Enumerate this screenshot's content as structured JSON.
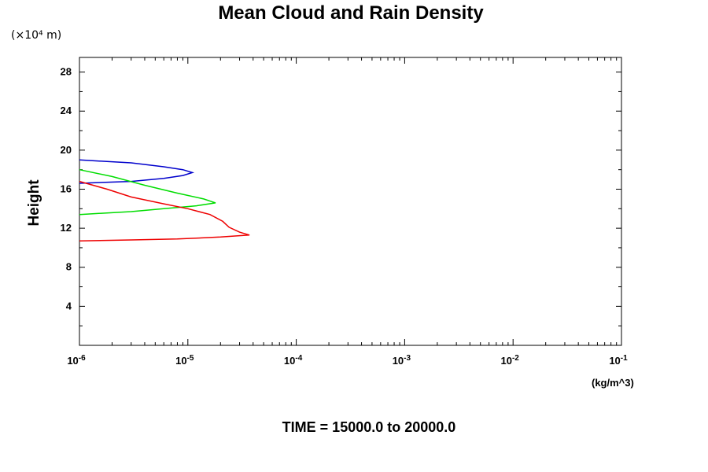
{
  "chart_data": {
    "type": "line",
    "title": "Mean Cloud and Rain Density",
    "y_units": "(×10⁴ m)",
    "ylabel": "Height",
    "xlabel": "(kg/m^3)",
    "footer": "TIME = 15000.0 to 20000.0",
    "x_scale": "log",
    "xlim": [
      1e-06,
      0.1
    ],
    "ylim": [
      0,
      29.5
    ],
    "x_tick_labels": [
      "10",
      "10",
      "10",
      "10",
      "10",
      "10"
    ],
    "x_tick_exponents": [
      "-6",
      "-5",
      "-4",
      "-3",
      "-2",
      "-1"
    ],
    "y_ticks": [
      "4",
      "8",
      "12",
      "16",
      "20",
      "24",
      "28"
    ],
    "grid": false,
    "series": [
      {
        "color": "#0000cc",
        "points": [
          [
            1e-06,
            19.0
          ],
          [
            3e-06,
            18.7
          ],
          [
            6e-06,
            18.3
          ],
          [
            9e-06,
            18.0
          ],
          [
            1.1e-05,
            17.7
          ],
          [
            9e-06,
            17.4
          ],
          [
            6e-06,
            17.1
          ],
          [
            3e-06,
            16.8
          ],
          [
            1e-06,
            16.6
          ]
        ]
      },
      {
        "color": "#00dd00",
        "points": [
          [
            1e-06,
            18.0
          ],
          [
            2e-06,
            17.3
          ],
          [
            4e-06,
            16.4
          ],
          [
            8e-06,
            15.6
          ],
          [
            1.4e-05,
            15.0
          ],
          [
            1.8e-05,
            14.6
          ],
          [
            1.2e-05,
            14.3
          ],
          [
            6e-06,
            14.0
          ],
          [
            3e-06,
            13.7
          ],
          [
            1e-06,
            13.4
          ]
        ]
      },
      {
        "color": "#ee0000",
        "points": [
          [
            1e-06,
            16.8
          ],
          [
            1.8e-06,
            16.0
          ],
          [
            3e-06,
            15.2
          ],
          [
            6e-06,
            14.5
          ],
          [
            1e-05,
            14.0
          ],
          [
            1.6e-05,
            13.4
          ],
          [
            2.1e-05,
            12.7
          ],
          [
            2.4e-05,
            12.1
          ],
          [
            3e-05,
            11.6
          ],
          [
            3.7e-05,
            11.3
          ],
          [
            2e-05,
            11.1
          ],
          [
            8e-06,
            10.9
          ],
          [
            3e-06,
            10.8
          ],
          [
            1e-06,
            10.7
          ]
        ]
      }
    ]
  }
}
